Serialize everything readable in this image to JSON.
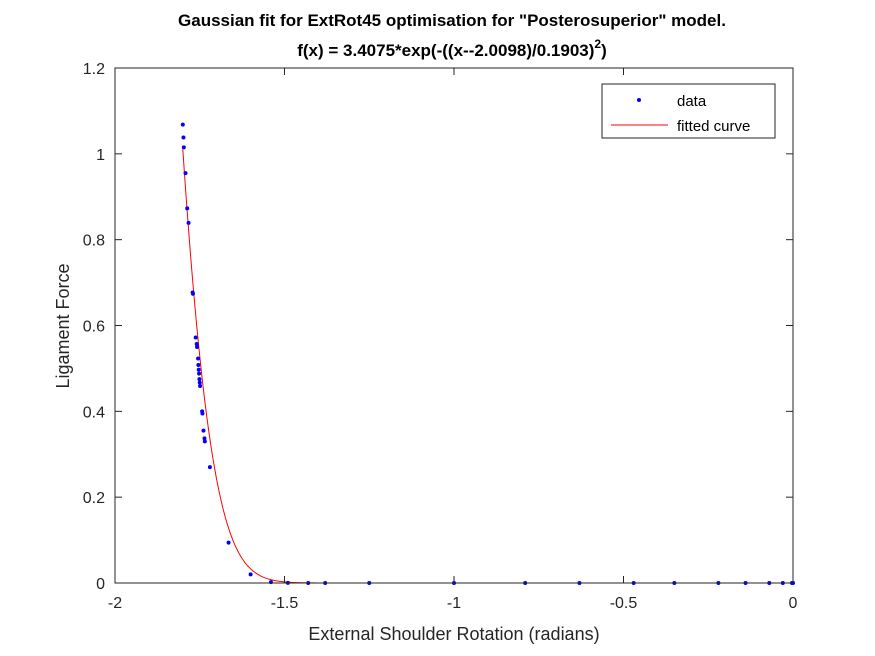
{
  "chart_data": {
    "type": "scatter",
    "title_line1": "Gaussian fit for ExtRot45 optimisation for \"Posterosuperior\" model.",
    "title_line2_prefix": "f(x) = 3.4075*exp(-((x--2.0098)/0.1903)",
    "title_line2_exponent": "2",
    "title_line2_suffix": ")",
    "xlabel": "External Shoulder Rotation (radians)",
    "ylabel": "Ligament Force",
    "xlim": [
      -2,
      0
    ],
    "ylim": [
      0,
      1.2
    ],
    "xticks": [
      -2,
      -1.5,
      -1,
      -0.5,
      0
    ],
    "xtick_labels": [
      "-2",
      "-1.5",
      "-1",
      "-0.5",
      "0"
    ],
    "yticks": [
      0,
      0.2,
      0.4,
      0.6,
      0.8,
      1,
      1.2
    ],
    "ytick_labels": [
      "0",
      "0.2",
      "0.4",
      "0.6",
      "0.8",
      "1",
      "1.2"
    ],
    "grid": false,
    "legend_position": "top-right",
    "fit": {
      "a": 3.4075,
      "b": -2.0098,
      "c": 0.1903
    },
    "series": [
      {
        "name": "data",
        "style": "points",
        "color": "#0000ff",
        "x": [
          -1.8,
          -1.798,
          -1.797,
          -1.792,
          -1.787,
          -1.783,
          -1.771,
          -1.77,
          -1.762,
          -1.759,
          -1.758,
          -1.755,
          -1.754,
          -1.753,
          -1.752,
          -1.751,
          -1.75,
          -1.749,
          -1.743,
          -1.742,
          -1.739,
          -1.736,
          -1.735,
          -1.72,
          -1.665,
          -1.6,
          -1.54,
          -1.49,
          -1.43,
          -1.38,
          -1.25,
          -1.0,
          -0.79,
          -0.63,
          -0.47,
          -0.35,
          -0.22,
          -0.14,
          -0.07,
          -0.03,
          -0.003,
          0.0
        ],
        "y": [
          1.068,
          1.038,
          1.015,
          0.955,
          0.873,
          0.839,
          0.677,
          0.674,
          0.572,
          0.557,
          0.55,
          0.523,
          0.508,
          0.497,
          0.488,
          0.475,
          0.467,
          0.459,
          0.4,
          0.395,
          0.355,
          0.337,
          0.33,
          0.27,
          0.094,
          0.02,
          0.002,
          0.0003,
          0.0,
          0.0,
          0.0,
          0.0,
          0.0,
          0.0,
          0.0,
          0.0,
          0.0,
          0.0,
          0.0,
          0.0,
          0.0,
          0.0
        ]
      },
      {
        "name": "fitted curve",
        "style": "line",
        "color": "#ff0000",
        "x_range": [
          -1.8,
          0
        ]
      }
    ]
  }
}
